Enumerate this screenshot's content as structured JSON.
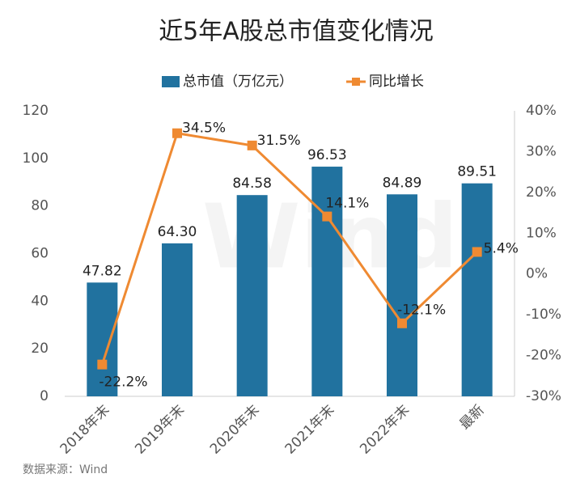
{
  "chart_data": {
    "type": "bar",
    "title": "近5年A股总市值变化情况",
    "source": "数据来源：Wind",
    "watermark": "Wind",
    "categories": [
      "2018年末",
      "2019年末",
      "2020年末",
      "2021年末",
      "2022年末",
      "最新"
    ],
    "series": [
      {
        "name": "总市值（万亿元）",
        "color": "#21729f",
        "values": [
          47.82,
          64.3,
          84.58,
          96.53,
          84.89,
          89.51
        ],
        "value_labels": [
          "47.82",
          "64.30",
          "84.58",
          "96.53",
          "84.89",
          "89.51"
        ]
      },
      {
        "name": "同比增长",
        "type": "line",
        "axis": "y2",
        "color": "#ef8a32",
        "values": [
          -22.2,
          34.5,
          31.5,
          14.1,
          -12.1,
          5.4
        ],
        "value_labels": [
          "-22.2%",
          "34.5%",
          "31.5%",
          "14.1%",
          "-12.1%",
          "5.4%"
        ]
      }
    ],
    "ylim": [
      0,
      120
    ],
    "yticks": [
      0,
      20,
      40,
      60,
      80,
      100,
      120
    ],
    "y2lim": [
      -30,
      40
    ],
    "y2ticks": [
      {
        "value": -30,
        "label": "-30%"
      },
      {
        "value": -20,
        "label": "-20%"
      },
      {
        "value": -10,
        "label": "-10%"
      },
      {
        "value": 0,
        "label": "0%"
      },
      {
        "value": 10,
        "label": "10%"
      },
      {
        "value": 20,
        "label": "20%"
      },
      {
        "value": 30,
        "label": "30%"
      },
      {
        "value": 40,
        "label": "40%"
      }
    ],
    "grid": false
  }
}
